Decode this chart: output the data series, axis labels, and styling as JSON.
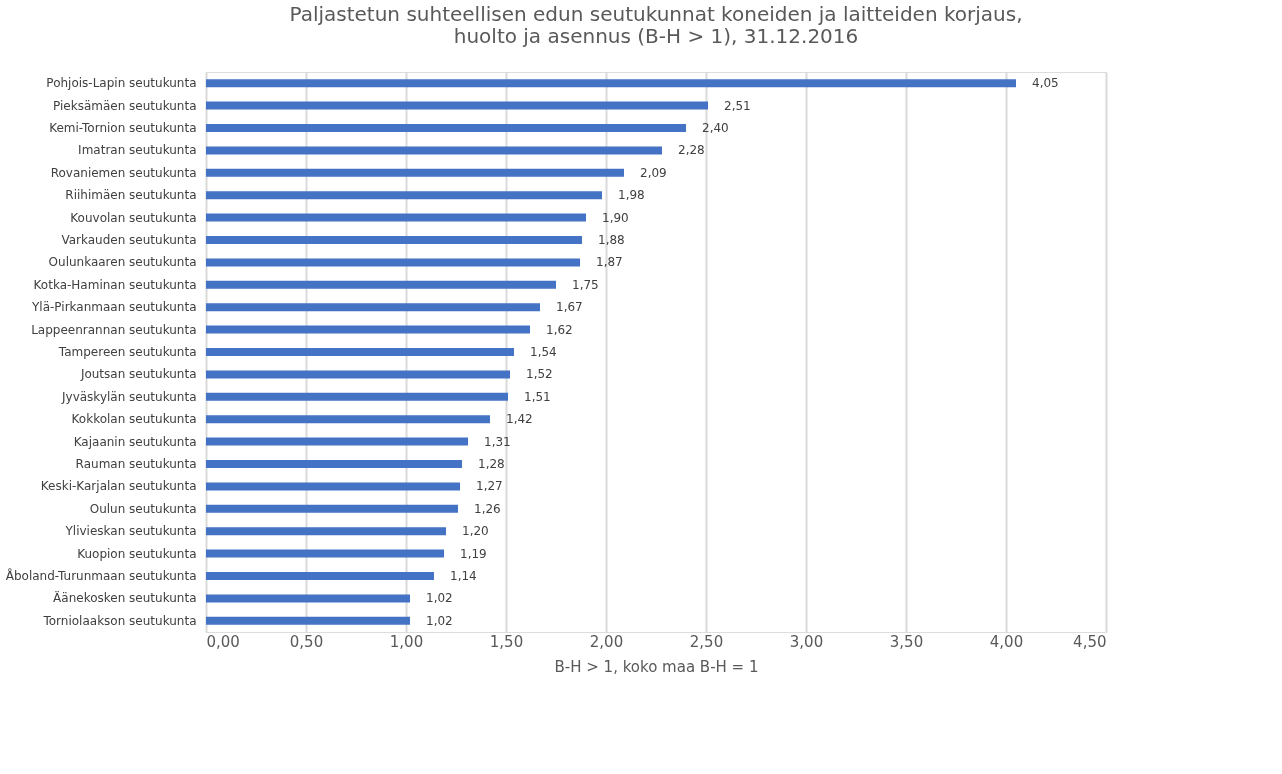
{
  "chart_data": {
    "type": "bar",
    "orientation": "horizontal",
    "title": "Paljastetun suhteellisen edun seutukunnat koneiden ja laitteiden korjaus,\nhuolto ja asennus (B-H > 1), 31.12.2016",
    "xlabel": "B-H > 1, koko maa B-H = 1",
    "categories": [
      "Pohjois-Lapin seutukunta",
      "Pieksämäen seutukunta",
      "Kemi-Tornion seutukunta",
      "Imatran seutukunta",
      "Rovaniemen seutukunta",
      "Riihimäen seutukunta",
      "Kouvolan seutukunta",
      "Varkauden seutukunta",
      "Oulunkaaren seutukunta",
      "Kotka-Haminan seutukunta",
      "Ylä-Pirkanmaan seutukunta",
      "Lappeenrannan seutukunta",
      "Tampereen seutukunta",
      "Joutsan seutukunta",
      "Jyväskylän seutukunta",
      "Kokkolan seutukunta",
      "Kajaanin seutukunta",
      "Rauman seutukunta",
      "Keski-Karjalan seutukunta",
      "Oulun seutukunta",
      "Ylivieskan seutukunta",
      "Kuopion seutukunta",
      "Åboland-Turunmaan seutukunta",
      "Äänekosken seutukunta",
      "Torniolaakson seutukunta"
    ],
    "values": [
      4.05,
      2.51,
      2.4,
      2.28,
      2.09,
      1.98,
      1.9,
      1.88,
      1.87,
      1.75,
      1.67,
      1.62,
      1.54,
      1.52,
      1.51,
      1.42,
      1.31,
      1.28,
      1.27,
      1.26,
      1.2,
      1.19,
      1.14,
      1.02,
      1.02
    ],
    "value_labels": [
      "4,05",
      "2,51",
      "2,40",
      "2,28",
      "2,09",
      "1,98",
      "1,90",
      "1,88",
      "1,87",
      "1,75",
      "1,67",
      "1,62",
      "1,54",
      "1,52",
      "1,51",
      "1,42",
      "1,31",
      "1,28",
      "1,27",
      "1,26",
      "1,20",
      "1,19",
      "1,14",
      "1,02",
      "1,02"
    ],
    "color": "#4472c4",
    "xlim": [
      0,
      4.5
    ],
    "xticks": [
      {
        "value": 0,
        "label": "0,00"
      },
      {
        "value": 0.5,
        "label": "0,50"
      },
      {
        "value": 1,
        "label": "1,00"
      },
      {
        "value": 1.5,
        "label": "1,50"
      },
      {
        "value": 2,
        "label": "2,00"
      },
      {
        "value": 2.5,
        "label": "2,50"
      },
      {
        "value": 3,
        "label": "3,00"
      },
      {
        "value": 3.5,
        "label": "3,50"
      },
      {
        "value": 4,
        "label": "4,00"
      },
      {
        "value": 4.5,
        "label": "4,50"
      }
    ],
    "grid": "x"
  }
}
